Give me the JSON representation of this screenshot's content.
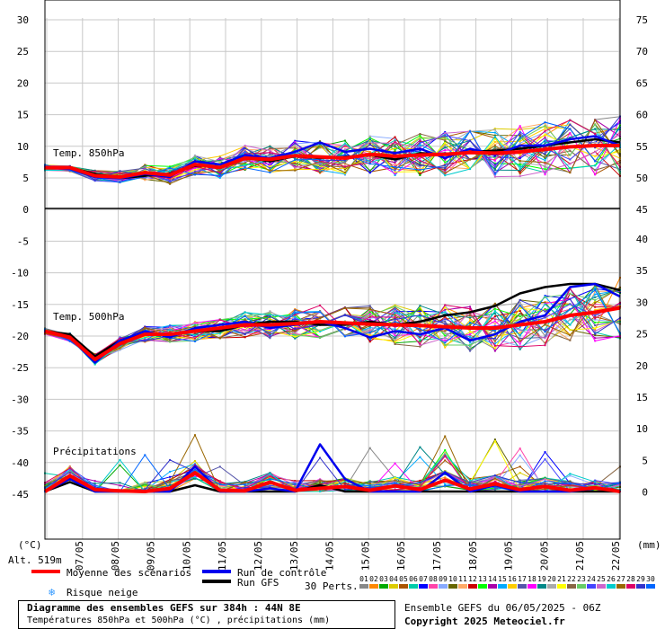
{
  "chart_data": {
    "type": "line",
    "title": "Diagramme des ensembles GEFS sur 384h : 44N 8E",
    "subtitle": "Températures 850hPa et 500hPa (°C) , précipitations (mm)",
    "left_axis": {
      "unit": "(°C)",
      "ticks": [
        "30",
        "25",
        "20",
        "15",
        "10",
        "5",
        "0",
        "-5",
        "-10",
        "-15",
        "-20",
        "-25",
        "-30",
        "-35",
        "-40",
        "-45"
      ]
    },
    "right_axis_top": {
      "ticks": [
        "75",
        "70",
        "65",
        "60",
        "55",
        "50",
        "45"
      ]
    },
    "right_axis_bottom": {
      "unit": "(mm)",
      "ticks": [
        "40",
        "35",
        "30",
        "25",
        "20",
        "15",
        "10",
        "5",
        "0"
      ]
    },
    "x_labels": [
      "07/05",
      "08/05",
      "09/05",
      "10/05",
      "11/05",
      "12/05",
      "13/05",
      "14/05",
      "15/05",
      "16/05",
      "17/05",
      "18/05",
      "19/05",
      "20/05",
      "21/05",
      "22/05"
    ],
    "panel_labels": {
      "t850": "Temp. 850hPa",
      "t500": "Temp. 500hPa",
      "precip": "Précipitations"
    },
    "altitude": "Alt. 519m",
    "series": [
      {
        "name": "Moyenne des scénarios",
        "color": "#ff0000",
        "t850": [
          6.5,
          6.5,
          5.2,
          5.0,
          5.7,
          5.3,
          7.0,
          6.5,
          8.0,
          7.8,
          8.4,
          8.2,
          8.0,
          8.6,
          8.3,
          8.5,
          8.6,
          8.9,
          8.8,
          9.0,
          9.4,
          9.8,
          10.0,
          10.0
        ],
        "t500": [
          -19.5,
          -20.5,
          -24.0,
          -21.5,
          -20.0,
          -20.0,
          -19.5,
          -19.0,
          -18.5,
          -18.5,
          -18.3,
          -18.0,
          -18.2,
          -18.4,
          -18.5,
          -18.6,
          -18.8,
          -19.0,
          -19.0,
          -18.5,
          -18.0,
          -17.0,
          -16.5,
          -15.8
        ],
        "precip": [
          0.0,
          2.5,
          0.3,
          0.1,
          0.0,
          0.5,
          3.0,
          0.2,
          0.1,
          1.5,
          0.2,
          0.5,
          0.8,
          0.2,
          0.9,
          0.3,
          1.8,
          0.4,
          1.2,
          0.3,
          0.8,
          0.2,
          0.6,
          0.0
        ]
      },
      {
        "name": "Run de contrôle",
        "color": "#0000ee",
        "t850": [
          6.5,
          6.3,
          5.0,
          4.8,
          5.5,
          5.0,
          7.5,
          7.0,
          8.5,
          8.0,
          9.0,
          10.5,
          9.0,
          9.5,
          8.8,
          9.5,
          8.0,
          9.5,
          8.5,
          10.0,
          10.0,
          11.0,
          11.5,
          10.0
        ],
        "t500": [
          -19.5,
          -20.5,
          -24.5,
          -21.0,
          -19.5,
          -20.5,
          -19.0,
          -18.5,
          -18.0,
          -19.0,
          -18.5,
          -18.0,
          -19.0,
          -20.5,
          -19.5,
          -20.0,
          -19.0,
          -21.0,
          -20.0,
          -18.0,
          -17.0,
          -12.5,
          -12.0,
          -14.0
        ],
        "precip": [
          0.0,
          2.0,
          0.0,
          0.0,
          0.0,
          0.0,
          4.0,
          0.0,
          0.0,
          0.5,
          0.0,
          7.5,
          2.0,
          0.0,
          0.0,
          0.0,
          3.0,
          0.0,
          1.0,
          0.0,
          0.0,
          0.0,
          0.5,
          0.0
        ]
      },
      {
        "name": "Run GFS",
        "color": "#000000",
        "t850": [
          6.5,
          6.5,
          5.5,
          4.8,
          5.2,
          5.5,
          6.8,
          6.6,
          8.1,
          7.5,
          8.3,
          8.0,
          8.2,
          8.5,
          7.8,
          8.8,
          8.6,
          9.0,
          9.2,
          9.5,
          10.0,
          10.5,
          11.0,
          10.5
        ],
        "t500": [
          -19.5,
          -20.0,
          -23.5,
          -21.0,
          -20.0,
          -20.0,
          -19.5,
          -19.5,
          -18.5,
          -18.0,
          -18.0,
          -18.5,
          -18.5,
          -18.0,
          -18.5,
          -18.0,
          -17.0,
          -16.5,
          -15.5,
          -13.5,
          -12.5,
          -12.0,
          -12.0,
          -13.0
        ],
        "precip": [
          0.0,
          1.5,
          0.0,
          0.0,
          0.0,
          0.0,
          1.0,
          0.0,
          0.0,
          0.0,
          0.0,
          1.0,
          0.0,
          0.0,
          0.0,
          0.0,
          0.0,
          0.0,
          0.0,
          0.0,
          0.0,
          0.0,
          0.0,
          0.0
        ]
      }
    ]
  },
  "legend": {
    "mean_label": "Moyenne des scénarios",
    "control_label": "Run de contrôle",
    "gfs_label": "Run GFS",
    "snow_label": "Risque neige",
    "perts_label": "30 Perts.",
    "pert_numbers": [
      "01",
      "02",
      "03",
      "04",
      "05",
      "06",
      "07",
      "08",
      "09",
      "10",
      "11",
      "12",
      "13",
      "14",
      "15",
      "16",
      "17",
      "18",
      "19",
      "20",
      "21",
      "22",
      "23",
      "24",
      "25",
      "26",
      "27",
      "28",
      "29",
      "30"
    ],
    "pert_colors": [
      "#888888",
      "#ff8800",
      "#00aa00",
      "#ddcc00",
      "#aa5500",
      "#00ccaa",
      "#0000ff",
      "#ff44aa",
      "#88aaff",
      "#666600",
      "#ffaa66",
      "#cc0000",
      "#00ff00",
      "#aa00aa",
      "#00aaff",
      "#ffcc00",
      "#5555aa",
      "#ff00ff",
      "#008888",
      "#aaaaaa",
      "#ffff00",
      "#886644",
      "#66cc66",
      "#4444ff",
      "#cc66cc",
      "#00cccc",
      "#996600",
      "#dd0066",
      "#3333cc",
      "#0066ff"
    ]
  },
  "footer": {
    "title": "Diagramme des ensembles GEFS sur 384h : 44N 8E",
    "subtitle": "Températures 850hPa et 500hPa (°C) , précipitations (mm)",
    "run_info": "Ensemble GEFS du 06/05/2025 - 06Z",
    "copyright": "Copyright 2025 Meteociel.fr"
  }
}
